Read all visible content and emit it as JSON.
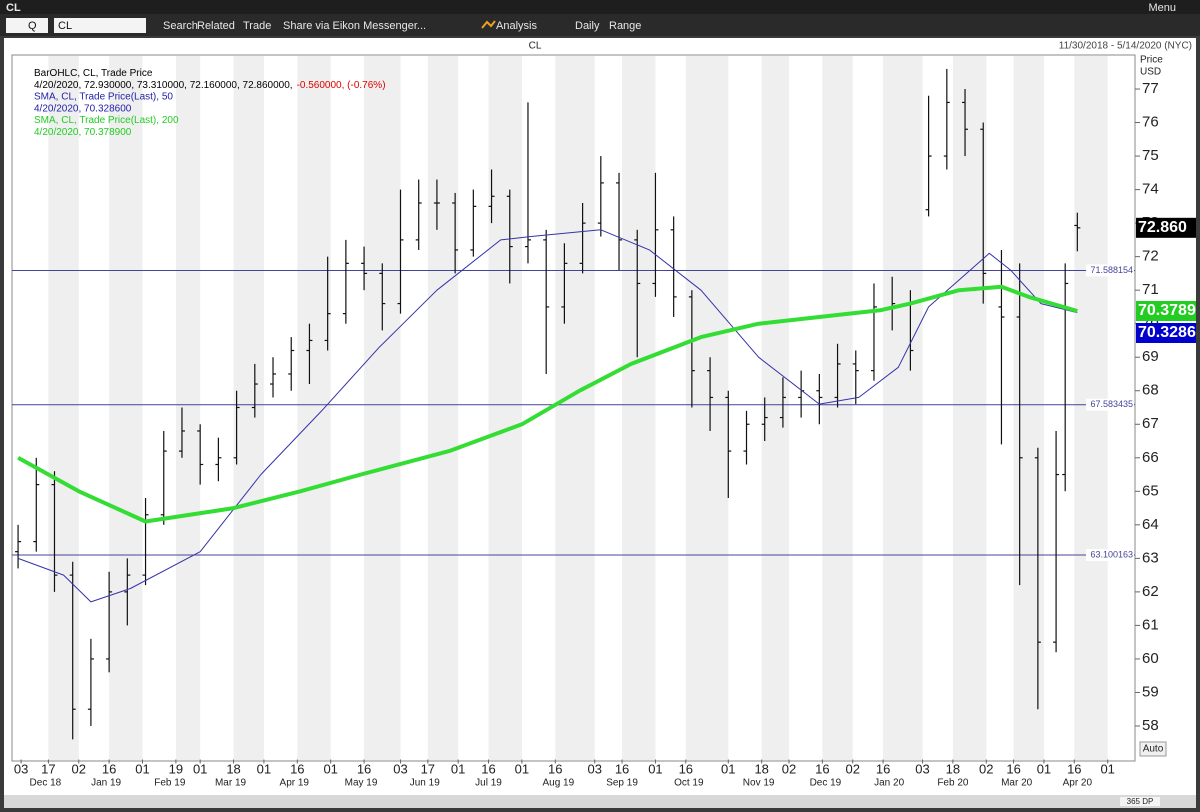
{
  "ui": {
    "window_title": "CL",
    "menu": "Menu",
    "toolbar": [
      "Q",
      "CL",
      "Search",
      "Related",
      "Trade",
      "Share via Eikon Messenger...",
      "Analysis",
      "Daily",
      "Range"
    ],
    "scroll_label": "365 DP",
    "auto": "Auto"
  },
  "chart_data": {
    "type": "ohlc",
    "title": "CL",
    "date_range": "11/30/2018 - 5/14/2020 (NYC)",
    "y_label": "Price",
    "y_unit": "USD",
    "legend": [
      [
        {
          "text": "BarOHLC, CL, Trade Price",
          "color": "#000000"
        }
      ],
      [
        {
          "text": "4/20/2020, 72.930000, 73.310000, 72.160000, 72.860000,",
          "color": "#000000"
        },
        {
          "text": "-0.560000, (-0.76%)",
          "color": "#dd0000"
        }
      ],
      [
        {
          "text": "SMA, CL, Trade Price(Last),  50",
          "color": "#2222aa"
        }
      ],
      [
        {
          "text": "4/20/2020, 70.328600",
          "color": "#2222aa"
        }
      ],
      [
        {
          "text": "SMA, CL, Trade Price(Last),  200",
          "color": "#22cc22"
        }
      ],
      [
        {
          "text": "4/20/2020, 70.378900",
          "color": "#22cc22"
        }
      ]
    ],
    "xlim": [
      -2,
      368
    ],
    "xticks": [
      {
        "value": 1,
        "label": "03"
      },
      {
        "value": 10,
        "label": "17"
      },
      {
        "value": 20,
        "label": "02"
      },
      {
        "value": 30,
        "label": "16"
      },
      {
        "value": 41,
        "label": "01"
      },
      {
        "value": 52,
        "label": "19"
      },
      {
        "value": 60,
        "label": "01"
      },
      {
        "value": 71,
        "label": "18"
      },
      {
        "value": 81,
        "label": "01"
      },
      {
        "value": 92,
        "label": "16"
      },
      {
        "value": 103,
        "label": "01"
      },
      {
        "value": 114,
        "label": "16"
      },
      {
        "value": 126,
        "label": "03"
      },
      {
        "value": 135,
        "label": "17"
      },
      {
        "value": 145,
        "label": "01"
      },
      {
        "value": 155,
        "label": "16"
      },
      {
        "value": 166,
        "label": "01"
      },
      {
        "value": 177,
        "label": "16"
      },
      {
        "value": 190,
        "label": "03"
      },
      {
        "value": 199,
        "label": "16"
      },
      {
        "value": 210,
        "label": "01"
      },
      {
        "value": 220,
        "label": "16"
      },
      {
        "value": 234,
        "label": "01"
      },
      {
        "value": 245,
        "label": "18"
      },
      {
        "value": 254,
        "label": "02"
      },
      {
        "value": 265,
        "label": "16"
      },
      {
        "value": 275,
        "label": "02"
      },
      {
        "value": 285,
        "label": "16"
      },
      {
        "value": 298,
        "label": "03"
      },
      {
        "value": 308,
        "label": "18"
      },
      {
        "value": 319,
        "label": "02"
      },
      {
        "value": 328,
        "label": "16"
      },
      {
        "value": 338,
        "label": "01"
      },
      {
        "value": 348,
        "label": "16"
      },
      {
        "value": 359,
        "label": "01"
      }
    ],
    "month_labels": [
      {
        "value": 9,
        "label": "Dec 18"
      },
      {
        "value": 29,
        "label": "Jan 19"
      },
      {
        "value": 50,
        "label": "Feb 19"
      },
      {
        "value": 70,
        "label": "Mar 19"
      },
      {
        "value": 91,
        "label": "Apr 19"
      },
      {
        "value": 113,
        "label": "May 19"
      },
      {
        "value": 134,
        "label": "Jun 19"
      },
      {
        "value": 155,
        "label": "Jul 19"
      },
      {
        "value": 178,
        "label": "Aug 19"
      },
      {
        "value": 199,
        "label": "Sep 19"
      },
      {
        "value": 221,
        "label": "Oct 19"
      },
      {
        "value": 244,
        "label": "Nov 19"
      },
      {
        "value": 266,
        "label": "Dec 19"
      },
      {
        "value": 287,
        "label": "Jan 20"
      },
      {
        "value": 308,
        "label": "Feb 20"
      },
      {
        "value": 329,
        "label": "Mar 20"
      },
      {
        "value": 349,
        "label": "Apr 20"
      }
    ],
    "ylim": [
      57,
      78
    ],
    "yticks": [
      58,
      59,
      60,
      61,
      62,
      63,
      64,
      65,
      66,
      67,
      68,
      69,
      70,
      71,
      72,
      73,
      74,
      75,
      76,
      77
    ],
    "bar_color": "#111111",
    "ohlc": {
      "x": [
        0,
        6,
        12,
        18,
        24,
        30,
        36,
        42,
        48,
        54,
        60,
        66,
        72,
        78,
        84,
        90,
        96,
        102,
        108,
        114,
        120,
        126,
        132,
        138,
        144,
        150,
        156,
        162,
        168,
        174,
        180,
        186,
        192,
        198,
        204,
        210,
        216,
        222,
        228,
        234,
        240,
        246,
        252,
        258,
        264,
        270,
        276,
        282,
        288,
        294,
        300,
        306,
        312,
        318,
        324,
        330,
        336,
        342,
        345,
        349
      ],
      "open": [
        63.2,
        63.5,
        65.2,
        62.5,
        58.5,
        60,
        62,
        62.5,
        64.3,
        66.2,
        66.8,
        65.8,
        66,
        67.5,
        68.2,
        68.5,
        69.2,
        69.5,
        70.3,
        71.8,
        71.5,
        70.6,
        72.5,
        73.6,
        73.6,
        72.2,
        73.5,
        73.8,
        72.3,
        72.5,
        70.5,
        71.8,
        73,
        74.2,
        72.5,
        71.2,
        72.8,
        70.8,
        68.6,
        67.8,
        66.2,
        67,
        67.2,
        67.8,
        68,
        67.8,
        68.8,
        68.6,
        70.5,
        70.6,
        73.4,
        75,
        76.6,
        75.8,
        70.5,
        70.2,
        66,
        60.5,
        65.5,
        72.93
      ],
      "high": [
        64.0,
        66.0,
        65.6,
        62.9,
        60.6,
        62.6,
        63.0,
        64.8,
        66.8,
        67.5,
        67.0,
        66.6,
        68.0,
        68.8,
        69.0,
        69.6,
        70.0,
        72.0,
        72.5,
        72.3,
        71.8,
        74.0,
        74.3,
        74.3,
        73.9,
        74.0,
        74.6,
        74.0,
        76.6,
        72.8,
        72.4,
        73.6,
        75.0,
        74.5,
        72.8,
        74.5,
        73.2,
        71.0,
        69.0,
        68.0,
        67.4,
        67.8,
        68.4,
        68.6,
        68.5,
        69.4,
        69.2,
        71.2,
        71.4,
        71.0,
        76.8,
        77.6,
        77.0,
        76.0,
        72.2,
        71.8,
        66.3,
        66.8,
        71.8,
        73.31
      ],
      "low": [
        62.7,
        63.2,
        62.0,
        57.6,
        58.0,
        59.6,
        61.0,
        62.2,
        64.0,
        66.0,
        65.2,
        65.3,
        65.8,
        67.2,
        67.8,
        68.0,
        68.2,
        69.2,
        70.0,
        71.0,
        69.8,
        70.3,
        72.2,
        72.8,
        71.5,
        72.0,
        73.0,
        71.2,
        71.8,
        68.5,
        70.0,
        71.5,
        72.6,
        71.6,
        69.0,
        70.8,
        70.2,
        67.5,
        66.8,
        64.8,
        65.8,
        66.5,
        66.9,
        67.2,
        67.0,
        67.5,
        67.6,
        68.3,
        69.8,
        68.6,
        73.2,
        74.6,
        75.0,
        70.6,
        66.4,
        62.2,
        58.5,
        60.2,
        65.0,
        72.16
      ],
      "close": [
        63.5,
        65.2,
        62.5,
        58.5,
        60,
        62,
        62.5,
        64.3,
        66.2,
        66.8,
        65.8,
        66,
        67.5,
        68.2,
        68.5,
        69.2,
        69.5,
        70.3,
        71.8,
        71.5,
        70.6,
        72.5,
        73.6,
        73.6,
        72.2,
        73.5,
        73.8,
        72.3,
        72.5,
        70.5,
        71.8,
        73,
        74.2,
        72.5,
        71.2,
        72.8,
        70.8,
        68.6,
        67.8,
        66.2,
        67,
        67.2,
        67.8,
        68,
        67.8,
        68.8,
        68.6,
        70.5,
        70.6,
        69.2,
        75,
        76.6,
        75.8,
        71.5,
        70.2,
        66,
        60.5,
        65.5,
        71.2,
        72.86
      ]
    },
    "series": [
      {
        "name": "SMA, CL, Trade Price(Last),  50",
        "color": "#3333aa",
        "width": 1,
        "x": [
          0,
          15,
          24,
          37,
          60,
          80,
          100,
          119,
          138,
          159,
          169,
          192,
          208,
          225,
          244,
          264,
          277,
          290,
          300,
          320,
          327,
          337,
          349
        ],
        "values": [
          63.0,
          62.5,
          61.7,
          62.1,
          63.2,
          65.5,
          67.4,
          69.3,
          71.0,
          72.5,
          72.6,
          72.8,
          72.2,
          71.0,
          69.0,
          67.6,
          67.8,
          68.7,
          70.5,
          72.1,
          71.6,
          70.6,
          70.3286
        ]
      },
      {
        "name": "SMA, CL, Trade Price(Last),  200",
        "color": "#33dd33",
        "width": 4,
        "x": [
          0,
          20,
          42,
          71,
          93,
          113,
          142,
          166,
          185,
          202,
          225,
          244,
          264,
          284,
          294,
          310,
          324,
          333,
          349
        ],
        "values": [
          66.0,
          65.0,
          64.1,
          64.5,
          65.0,
          65.5,
          66.2,
          67.0,
          68.0,
          68.8,
          69.6,
          70.0,
          70.2,
          70.4,
          70.6,
          71.0,
          71.1,
          70.8,
          70.3789
        ]
      }
    ],
    "hlines": [
      71.588154,
      67.583435,
      63.100163
    ],
    "hline_color": "#44449a",
    "price_badges": [
      {
        "value": 72.86,
        "label": "72.860",
        "color": "#000000"
      },
      {
        "value": 70.3789,
        "label": "70.3789",
        "color": "#22cc22"
      },
      {
        "value": 70.3286,
        "label": "70.3286",
        "color": "#0000cc"
      }
    ]
  }
}
